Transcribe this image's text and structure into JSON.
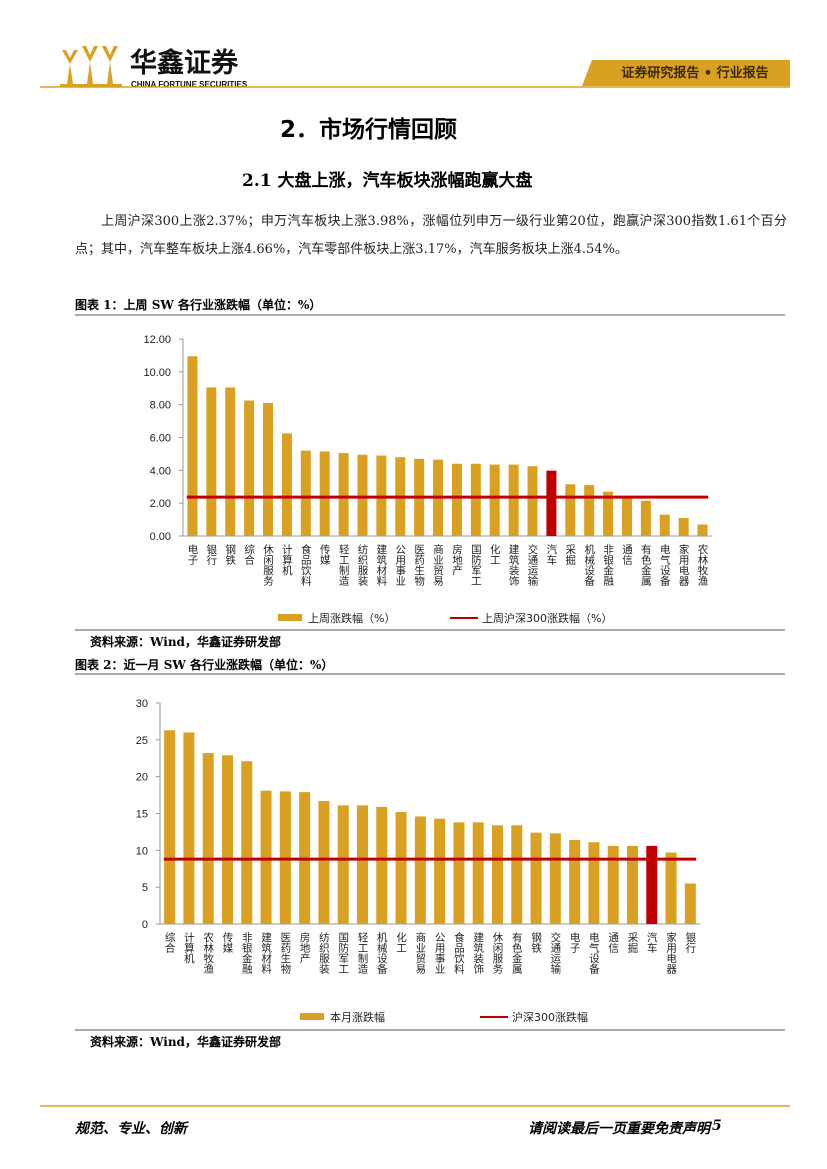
{
  "header": {
    "company": "华鑫证券",
    "company_en": "CHINA FORTUNE SECURITIES",
    "report_type": "证券研究报告 • 行业报告"
  },
  "section_title": "2．市场行情回顾",
  "subsection_title": "2.1 大盘上涨，汽车板块涨幅跑赢大盘",
  "paragraph": "上周沪深300上涨2.37%；申万汽车板块上涨3.98%，涨幅位列申万一级行业第20位，跑赢沪深300指数1.61个百分点；其中，汽车整车板块上涨4.66%，汽车零部件板块上涨3.17%，汽车服务板块上涨4.54%。",
  "figures": [
    {
      "caption": "图表 1：上周 SW 各行业涨跌幅（单位：%）",
      "source": "资料来源：Wind，华鑫证券研发部"
    },
    {
      "caption": "图表 2：近一月 SW 各行业涨跌幅（单位：%）",
      "source": "资料来源：Wind，华鑫证券研发部"
    }
  ],
  "chart_data": [
    {
      "type": "bar",
      "categories": [
        "电子",
        "银行",
        "钢铁",
        "综合",
        "休闲服务",
        "计算机",
        "食品饮料",
        "传媒",
        "轻工制造",
        "纺织服装",
        "建筑材料",
        "公用事业",
        "医药生物",
        "商业贸易",
        "房地产",
        "国防军工",
        "化工",
        "建筑装饰",
        "交通运输",
        "汽车",
        "采掘",
        "机械设备",
        "非银金融",
        "通信",
        "有色金属",
        "电气设备",
        "家用电器",
        "农林牧渔"
      ],
      "series": [
        {
          "name": "上周涨跌幅（%）",
          "color": "#d9a021",
          "colors": [
            "#d9a021",
            "#d9a021",
            "#d9a021",
            "#d9a021",
            "#d9a021",
            "#d9a021",
            "#d9a021",
            "#d9a021",
            "#d9a021",
            "#d9a021",
            "#d9a021",
            "#d9a021",
            "#d9a021",
            "#d9a021",
            "#d9a021",
            "#d9a021",
            "#d9a021",
            "#d9a021",
            "#d9a021",
            "#c00000",
            "#d9a021",
            "#d9a021",
            "#d9a021",
            "#d9a021",
            "#d9a021",
            "#d9a021",
            "#d9a021",
            "#d9a021"
          ],
          "values": [
            10.95,
            9.05,
            9.05,
            8.25,
            8.1,
            6.25,
            5.2,
            5.15,
            5.05,
            4.95,
            4.9,
            4.8,
            4.7,
            4.65,
            4.4,
            4.4,
            4.35,
            4.35,
            4.25,
            3.98,
            3.15,
            3.1,
            2.7,
            2.4,
            2.15,
            1.3,
            1.1,
            0.7
          ]
        }
      ],
      "reference_line": {
        "name": "上周沪深300涨跌幅（%）",
        "color": "#c00000",
        "value": 2.37
      },
      "ylim": [
        0,
        12
      ],
      "yticks": [
        {
          "value": 0,
          "label": "0.00"
        },
        {
          "value": 2,
          "label": "2.00"
        },
        {
          "value": 4,
          "label": "4.00"
        },
        {
          "value": 6,
          "label": "6.00"
        },
        {
          "value": 8,
          "label": "8.00"
        },
        {
          "value": 10,
          "label": "10.00"
        },
        {
          "value": 12,
          "label": "12.00"
        }
      ]
    },
    {
      "type": "bar",
      "categories": [
        "综合",
        "计算机",
        "农林牧渔",
        "传媒",
        "非银金融",
        "建筑材料",
        "医药生物",
        "房地产",
        "纺织服装",
        "国防军工",
        "轻工制造",
        "机械设备",
        "化工",
        "商业贸易",
        "公用事业",
        "食品饮料",
        "建筑装饰",
        "休闲服务",
        "有色金属",
        "钢铁",
        "交通运输",
        "电子",
        "电气设备",
        "通信",
        "采掘",
        "汽车",
        "家用电器",
        "银行"
      ],
      "series": [
        {
          "name": "本月涨跌幅",
          "color": "#d9a021",
          "colors": [
            "#d9a021",
            "#d9a021",
            "#d9a021",
            "#d9a021",
            "#d9a021",
            "#d9a021",
            "#d9a021",
            "#d9a021",
            "#d9a021",
            "#d9a021",
            "#d9a021",
            "#d9a021",
            "#d9a021",
            "#d9a021",
            "#d9a021",
            "#d9a021",
            "#d9a021",
            "#d9a021",
            "#d9a021",
            "#d9a021",
            "#d9a021",
            "#d9a021",
            "#d9a021",
            "#d9a021",
            "#d9a021",
            "#c00000",
            "#d9a021",
            "#d9a021"
          ],
          "values": [
            26.3,
            26.0,
            23.2,
            22.9,
            22.1,
            18.1,
            18.0,
            17.9,
            16.7,
            16.1,
            16.1,
            15.9,
            15.2,
            14.6,
            14.3,
            13.8,
            13.8,
            13.4,
            13.4,
            12.4,
            12.3,
            11.4,
            11.1,
            10.6,
            10.6,
            10.6,
            9.7,
            5.5
          ]
        }
      ],
      "reference_line": {
        "name": "沪深300涨跌幅",
        "color": "#c00000",
        "value": 8.8
      },
      "ylim": [
        0,
        30
      ],
      "yticks": [
        0,
        5,
        10,
        15,
        20,
        25,
        30
      ]
    }
  ],
  "footer": {
    "left": "规范、专业、创新",
    "right": "请阅读最后一页重要免责声明",
    "page": "5"
  }
}
